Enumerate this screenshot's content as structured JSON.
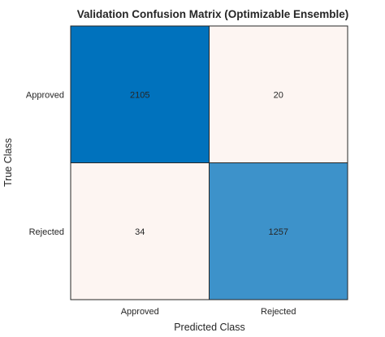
{
  "chart_data": {
    "type": "heatmap",
    "title": "Validation Confusion Matrix (Optimizable Ensemble)",
    "xlabel": "Predicted Class",
    "ylabel": "True Class",
    "row_labels": [
      "Approved",
      "Rejected"
    ],
    "col_labels": [
      "Approved",
      "Rejected"
    ],
    "values": [
      [
        2105,
        20
      ],
      [
        34,
        1257
      ]
    ],
    "colors": {
      "low": "#FDF5F2",
      "high": "#0072BD",
      "text_light": "#FFFFFF",
      "text_dark": "#000000",
      "grid": "#262626"
    }
  }
}
